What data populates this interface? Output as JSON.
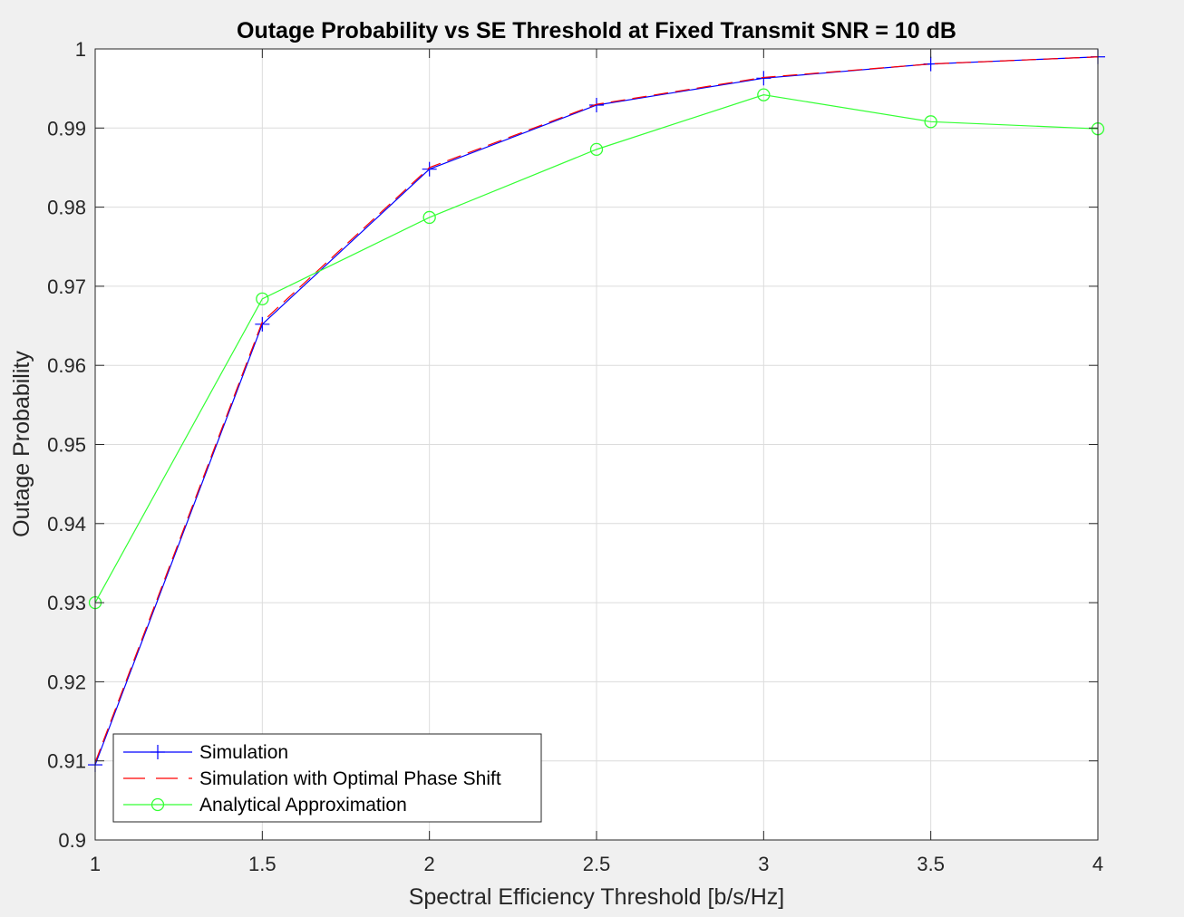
{
  "chart_data": {
    "type": "line",
    "title": "Outage Probability vs SE Threshold at Fixed Transmit SNR = 10 dB",
    "xlabel": "Spectral Efficiency Threshold [b/s/Hz]",
    "ylabel": "Outage Probability",
    "xlim": [
      1,
      4
    ],
    "ylim": [
      0.9,
      1
    ],
    "xticks": [
      1,
      1.5,
      2,
      2.5,
      3,
      3.5,
      4
    ],
    "yticks": [
      0.9,
      0.91,
      0.92,
      0.93,
      0.94,
      0.95,
      0.96,
      0.97,
      0.98,
      0.99,
      1
    ],
    "xtick_labels": [
      "1",
      "1.5",
      "2",
      "2.5",
      "3",
      "3.5",
      "4"
    ],
    "ytick_labels": [
      "0.9",
      "0.91",
      "0.92",
      "0.93",
      "0.94",
      "0.95",
      "0.96",
      "0.97",
      "0.98",
      "0.99",
      "1"
    ],
    "grid": true,
    "legend_location": "bottom-left",
    "x": [
      1,
      1.5,
      2,
      2.5,
      3,
      3.5,
      4
    ],
    "series": [
      {
        "name": "Simulation",
        "values": [
          0.9095,
          0.9652,
          0.9848,
          0.9929,
          0.9963,
          0.9981,
          0.999
        ],
        "color": "#0000ff",
        "line_style": "solid",
        "marker": "plus"
      },
      {
        "name": "Simulation with Optimal Phase Shift",
        "values": [
          0.9098,
          0.9655,
          0.985,
          0.993,
          0.9964,
          0.9981,
          0.999
        ],
        "color": "#ff0000",
        "line_style": "dashed",
        "marker": "none"
      },
      {
        "name": "Analytical Approximation",
        "values": [
          0.93,
          0.9684,
          0.9787,
          0.9873,
          0.9942,
          0.9908,
          0.9899
        ],
        "color": "#33ff33",
        "line_style": "solid",
        "marker": "circle"
      }
    ]
  }
}
